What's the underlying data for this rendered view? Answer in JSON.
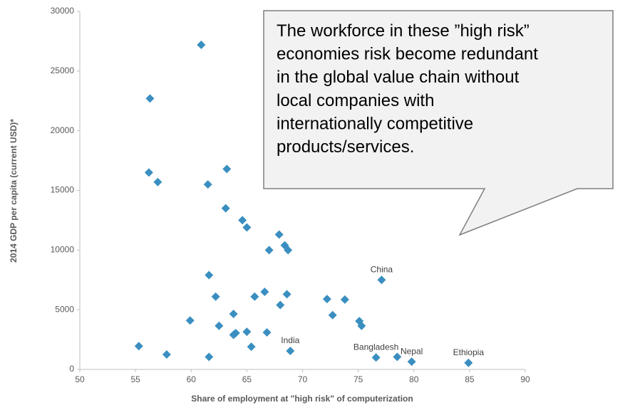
{
  "chart_data": {
    "type": "scatter",
    "x_label": "Share of employment at \"high risk\" of computerization",
    "y_label": "2014 GDP per capita (current USD)*",
    "color": "#3a8fc0",
    "xlim": [
      50,
      90
    ],
    "xticks": [
      50,
      55,
      60,
      65,
      70,
      75,
      80,
      85,
      90
    ],
    "ylim": [
      0,
      30000
    ],
    "yticks": [
      0,
      5000,
      10000,
      15000,
      20000,
      25000,
      30000
    ],
    "grid": false,
    "x": [
      56.3,
      60.9,
      56.2,
      57.0,
      63.2,
      61.5,
      63.1,
      64.6,
      65.0,
      67.9,
      68.4,
      68.7,
      67.0,
      61.6,
      77.1,
      62.2,
      65.7,
      66.6,
      68.6,
      72.2,
      73.8,
      68.0,
      63.8,
      72.7,
      75.1,
      75.3,
      59.9,
      62.5,
      64.0,
      63.8,
      65.0,
      66.8,
      65.4,
      55.3,
      57.8,
      61.6,
      68.9,
      76.6,
      78.5,
      79.8,
      84.9
    ],
    "y": [
      22700,
      27200,
      16500,
      15700,
      16800,
      15500,
      13500,
      12500,
      11900,
      11300,
      10400,
      10000,
      10000,
      7900,
      7500,
      6100,
      6100,
      6500,
      6300,
      5900,
      5850,
      5400,
      4650,
      4550,
      4050,
      3650,
      4100,
      3650,
      3050,
      2900,
      3150,
      3100,
      1900,
      1950,
      1250,
      1050,
      1550,
      1000,
      1050,
      650,
      550
    ],
    "point_labels": [
      null,
      null,
      null,
      null,
      null,
      null,
      null,
      null,
      null,
      null,
      null,
      null,
      null,
      null,
      "China",
      null,
      null,
      null,
      null,
      null,
      null,
      null,
      null,
      null,
      null,
      null,
      null,
      null,
      null,
      null,
      null,
      null,
      null,
      null,
      null,
      null,
      "India",
      "Bangladesh",
      null,
      "Nepal",
      "Ethiopia"
    ],
    "callout": [
      "The workforce in these ”high risk”",
      "economies risk become redundant",
      "in the global value chain without",
      "local companies with",
      "internationally competitive",
      "products/services."
    ]
  }
}
